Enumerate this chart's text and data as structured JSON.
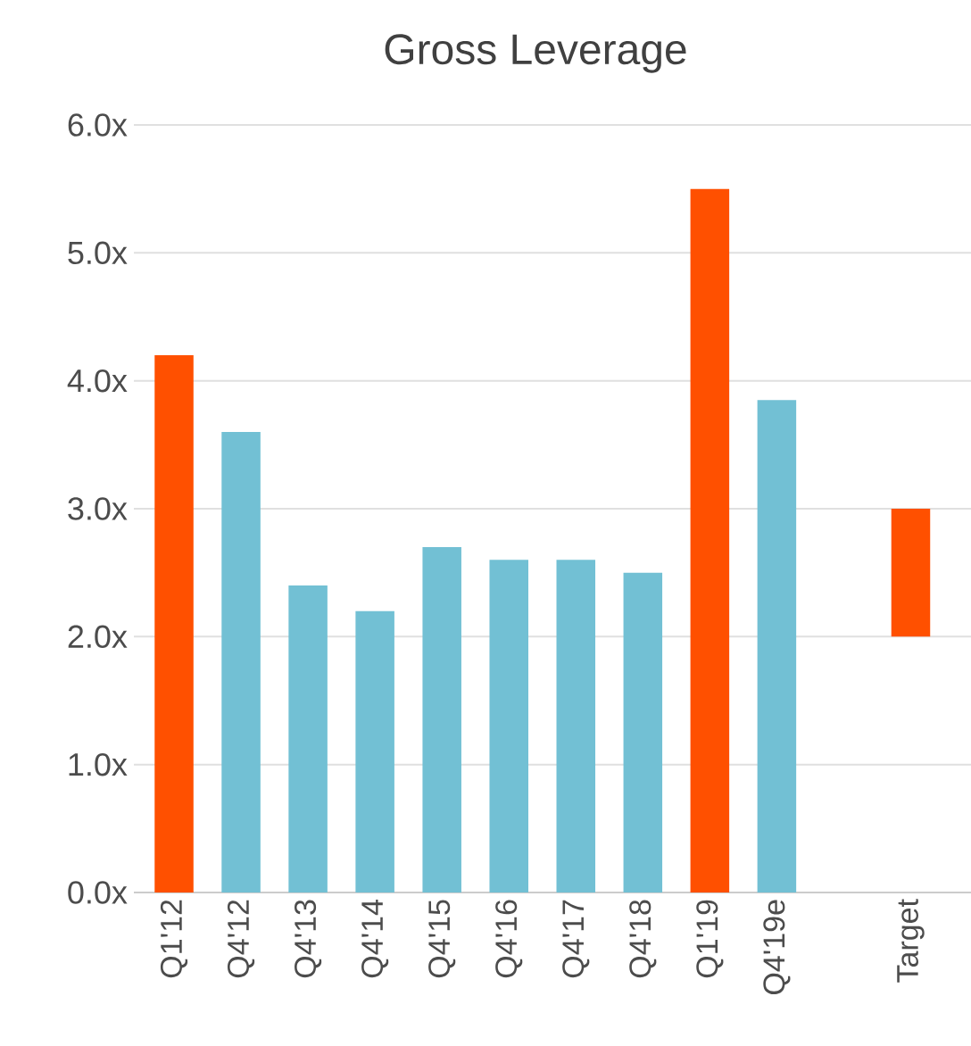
{
  "chart_data": {
    "type": "bar",
    "title": "Gross Leverage",
    "categories": [
      "Q1'12",
      "Q4'12",
      "Q4'13",
      "Q4'14",
      "Q4'15",
      "Q4'16",
      "Q4'17",
      "Q4'18",
      "Q1'19",
      "Q4'19e",
      null,
      "Target"
    ],
    "values": [
      4.2,
      3.6,
      2.4,
      2.2,
      2.7,
      2.6,
      2.6,
      2.5,
      5.5,
      3.85,
      null,
      1.0
    ],
    "base": [
      0,
      0,
      0,
      0,
      0,
      0,
      0,
      0,
      0,
      0,
      null,
      2.0
    ],
    "colors": [
      "#ff5000",
      "#72c0d4",
      "#72c0d4",
      "#72c0d4",
      "#72c0d4",
      "#72c0d4",
      "#72c0d4",
      "#72c0d4",
      "#ff5000",
      "#72c0d4",
      null,
      "#ff5000"
    ],
    "ylim": [
      0,
      6
    ],
    "yticks": [
      {
        "value": 0,
        "label": "0.0x"
      },
      {
        "value": 1,
        "label": "1.0x"
      },
      {
        "value": 2,
        "label": "2.0x"
      },
      {
        "value": 3,
        "label": "3.0x"
      },
      {
        "value": 4,
        "label": "4.0x"
      },
      {
        "value": 5,
        "label": "5.0x"
      },
      {
        "value": 6,
        "label": "6.0x"
      }
    ],
    "grid": "y"
  }
}
